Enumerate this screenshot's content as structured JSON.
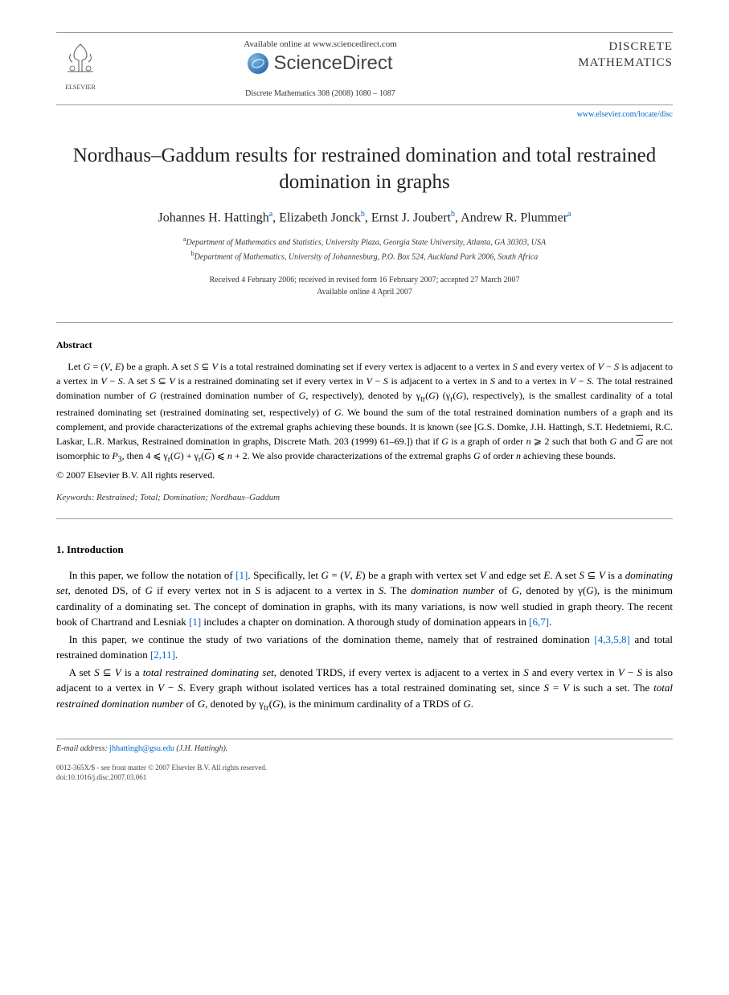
{
  "header": {
    "available_online": "Available online at www.sciencedirect.com",
    "sciencedirect": "ScienceDirect",
    "journal_ref": "Discrete Mathematics 308 (2008) 1080 – 1087",
    "elsevier_label": "ELSEVIER",
    "journal_name_line1": "DISCRETE",
    "journal_name_line2": "MATHEMATICS",
    "journal_link": "www.elsevier.com/locate/disc"
  },
  "title": "Nordhaus–Gaddum results for restrained domination and total restrained domination in graphs",
  "authors_html": "Johannes H. Hattingh<sup>a</sup>, Elizabeth Jonck<sup>b</sup>, Ernst J. Joubert<sup>b</sup>, Andrew R. Plummer<sup>a</sup>",
  "affiliations": {
    "a": "Department of Mathematics and Statistics, University Plaza, Georgia State University, Atlanta, GA 30303, USA",
    "b": "Department of Mathematics, University of Johannesburg, P.O. Box 524, Auckland Park 2006, South Africa"
  },
  "dates": {
    "line1": "Received 4 February 2006; received in revised form 16 February 2007; accepted 27 March 2007",
    "line2": "Available online 4 April 2007"
  },
  "abstract": {
    "heading": "Abstract",
    "body_html": "Let <i>G</i> = (<i>V</i>, <i>E</i>) be a graph. A set <i>S</i> ⊆ <i>V</i> is a total restrained dominating set if every vertex is adjacent to a vertex in <i>S</i> and every vertex of <i>V</i> − <i>S</i> is adjacent to a vertex in <i>V</i> − <i>S</i>. A set <i>S</i> ⊆ <i>V</i> is a restrained dominating set if every vertex in <i>V</i> − <i>S</i> is adjacent to a vertex in <i>S</i> and to a vertex in <i>V</i> − <i>S</i>. The total restrained domination number of <i>G</i> (restrained domination number of <i>G</i>, respectively), denoted by γ<sub>tr</sub>(<i>G</i>) (γ<sub>r</sub>(<i>G</i>), respectively), is the smallest cardinality of a total restrained dominating set (restrained dominating set, respectively) of <i>G</i>. We bound the sum of the total restrained domination numbers of a graph and its complement, and provide characterizations of the extremal graphs achieving these bounds. It is known (see [G.S. Domke, J.H. Hattingh, S.T. Hedetniemi, R.C. Laskar, L.R. Markus, Restrained domination in graphs, Discrete Math. 203 (1999) 61–69.]) that if <i>G</i> is a graph of order <i>n</i> ⩾ 2 such that both <i>G</i> and <span class=\"overline\"><i>G</i></span> are not isomorphic to <i>P</i><sub>3</sub>, then 4 ⩽ γ<sub>r</sub>(<i>G</i>) + γ<sub>r</sub>(<span class=\"overline\"><i>G</i></span>) ⩽ <i>n</i> + 2. We also provide characterizations of the extremal graphs <i>G</i> of order <i>n</i> achieving these bounds.",
    "copyright": "© 2007 Elsevier B.V. All rights reserved."
  },
  "keywords": {
    "label": "Keywords:",
    "list": "Restrained; Total; Domination; Nordhaus–Gaddum"
  },
  "section1": {
    "heading": "1.  Introduction",
    "p1_html": "In  this paper, we follow the notation of <span class=\"ref-link\">[1]</span>. Specifically, let <i>G</i> = (<i>V</i>, <i>E</i>) be a graph with vertex set <i>V</i> and edge set <i>E</i>. A set <i>S</i> ⊆ <i>V</i> is a <i>dominating set</i>, denoted DS, of <i>G</i> if every vertex not in <i>S</i> is adjacent to a vertex in <i>S</i>. The <i>domination number</i> of <i>G</i>, denoted by γ(<i>G</i>), is the minimum cardinality of a dominating set. The concept of domination in graphs, with its many variations, is now well studied in graph theory. The recent book of Chartrand and Lesniak <span class=\"ref-link\">[1]</span> includes a chapter on domination. A thorough study of domination appears in <span class=\"ref-link\">[6,7]</span>.",
    "p2_html": "In this paper, we continue the study of two variations of the domination theme, namely that of restrained domination <span class=\"ref-link\">[4,3,5,8]</span> and total restrained domination <span class=\"ref-link\">[2,11]</span>.",
    "p3_html": "A set <i>S</i> ⊆ <i>V</i> is a <i>total restrained dominating set</i>, denoted TRDS, if every vertex is adjacent to a vertex in <i>S</i> and every vertex in <i>V</i> − <i>S</i> is also adjacent to a vertex in <i>V</i> − <i>S</i>. Every graph without isolated vertices has a total restrained dominating set, since <i>S</i> = <i>V</i> is such a set. The <i>total restrained domination number</i> of <i>G</i>, denoted by γ<sub>tr</sub>(<i>G</i>), is the minimum cardinality of a TRDS of <i>G</i>."
  },
  "footer": {
    "email_label": "E-mail address:",
    "email": "jhhattingh@gsu.edu",
    "email_author": "(J.H. Hattingh).",
    "line1": "0012-365X/$ - see front matter © 2007 Elsevier B.V. All rights reserved.",
    "line2": "doi:10.1016/j.disc.2007.03.061"
  },
  "colors": {
    "link": "#0066cc",
    "text": "#000000",
    "rule": "#999999",
    "background": "#ffffff"
  }
}
